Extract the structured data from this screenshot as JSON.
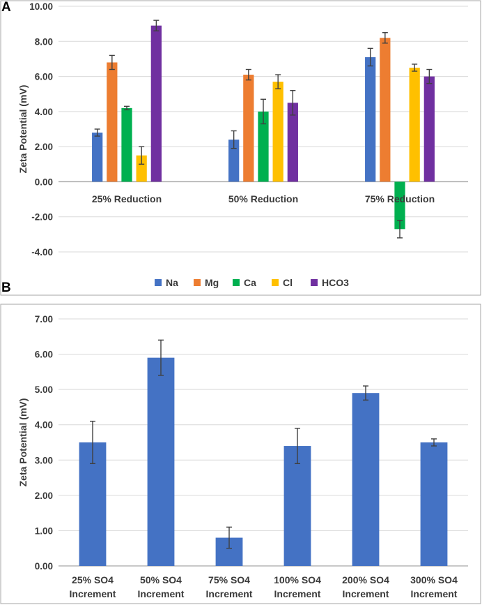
{
  "chart_data": [
    {
      "type": "bar",
      "panel_label": "A",
      "categories": [
        "25% Reduction",
        "50% Reduction",
        "75% Reduction"
      ],
      "series": [
        {
          "name": "Na",
          "color": "#4472C4",
          "values": [
            2.8,
            2.4,
            7.1
          ],
          "errors": [
            0.2,
            0.5,
            0.5
          ]
        },
        {
          "name": "Mg",
          "color": "#ED7D31",
          "values": [
            6.8,
            6.1,
            8.2
          ],
          "errors": [
            0.4,
            0.3,
            0.3
          ]
        },
        {
          "name": "Ca",
          "color": "#00B050",
          "values": [
            4.2,
            4.0,
            -2.7
          ],
          "errors": [
            0.1,
            0.7,
            0.5
          ]
        },
        {
          "name": "Cl",
          "color": "#FFC000",
          "values": [
            1.5,
            5.7,
            6.5
          ],
          "errors": [
            0.5,
            0.4,
            0.2
          ]
        },
        {
          "name": "HCO3",
          "color": "#7030A0",
          "values": [
            8.9,
            4.5,
            6.0
          ],
          "errors": [
            0.3,
            0.7,
            0.4
          ]
        }
      ],
      "ylabel": "Zeta Potential (mV)",
      "ylim": [
        -4,
        10
      ],
      "yticks": [
        -4,
        -2,
        0,
        2,
        4,
        6,
        8,
        10
      ],
      "ytick_labels": [
        "-4.00",
        "-2.00",
        "0.00",
        "2.00",
        "4.00",
        "6.00",
        "8.00",
        "10.00"
      ],
      "legend": "bottom"
    },
    {
      "type": "bar",
      "panel_label": "B",
      "categories": [
        [
          "25% SO4",
          "Increment"
        ],
        [
          "50% SO4",
          "Increment"
        ],
        [
          "75% SO4",
          "Increment"
        ],
        [
          "100% SO4",
          "Increment"
        ],
        [
          "200% SO4",
          "Increment"
        ],
        [
          "300% SO4",
          "Increment"
        ]
      ],
      "series": [
        {
          "name": "Zeta Potential",
          "color": "#4472C4",
          "values": [
            3.5,
            5.9,
            0.8,
            3.4,
            4.9,
            3.5
          ],
          "errors": [
            0.6,
            0.5,
            0.3,
            0.5,
            0.2,
            0.1
          ]
        }
      ],
      "ylabel": "Zeta Potential (mV)",
      "ylim": [
        0,
        7
      ],
      "yticks": [
        0,
        1,
        2,
        3,
        4,
        5,
        6,
        7
      ],
      "ytick_labels": [
        "0.00",
        "1.00",
        "2.00",
        "3.00",
        "4.00",
        "5.00",
        "6.00",
        "7.00"
      ],
      "legend": "none"
    }
  ]
}
